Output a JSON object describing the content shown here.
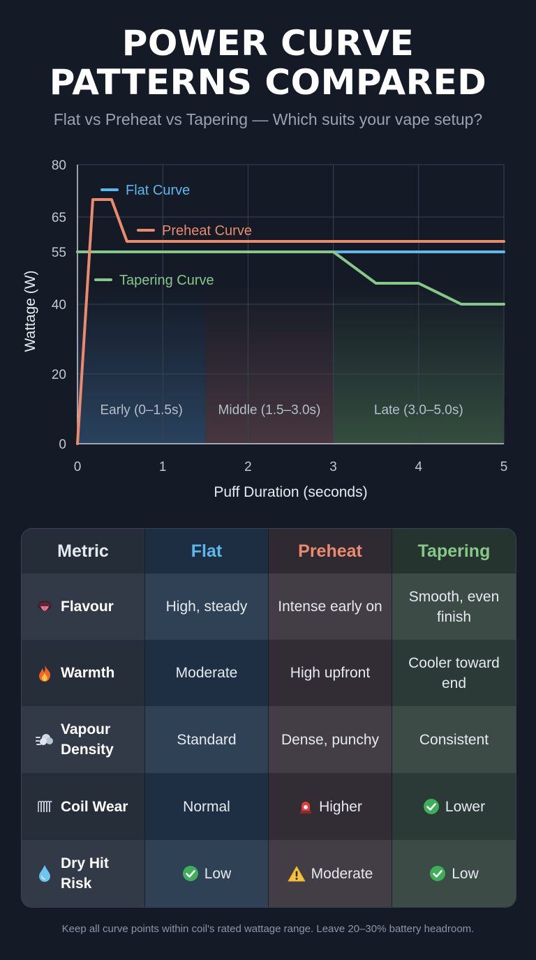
{
  "title_line1": "POWER CURVE",
  "title_line2": "PATTERNS COMPARED",
  "subtitle": "Flat vs Preheat vs Tapering — Which suits your vape setup?",
  "chart_data": {
    "type": "line",
    "title": "",
    "xlabel": "Puff Duration (seconds)",
    "ylabel": "Wattage (W)",
    "xlim": [
      0,
      5
    ],
    "ylim": [
      0,
      80
    ],
    "x_ticks": [
      0,
      1,
      2,
      3,
      4,
      5
    ],
    "y_ticks": [
      0,
      20,
      40,
      55,
      65,
      80
    ],
    "grid": true,
    "regions": [
      {
        "label": "Early (0–1.5s)",
        "x": [
          0,
          1.5
        ],
        "color": "#2a4460"
      },
      {
        "label": "Middle (1.5–3.0s)",
        "x": [
          1.5,
          3.0
        ],
        "color": "#4a3840"
      },
      {
        "label": "Late (3.0–5.0s)",
        "x": [
          3.0,
          5.0
        ],
        "color": "#35503f"
      }
    ],
    "series": [
      {
        "name": "Flat Curve",
        "color": "#5bb8ec",
        "points": [
          [
            0,
            55
          ],
          [
            5,
            55
          ]
        ]
      },
      {
        "name": "Preheat Curve",
        "color": "#ec8a6e",
        "points": [
          [
            0,
            0
          ],
          [
            0.18,
            70
          ],
          [
            0.4,
            70
          ],
          [
            0.58,
            58
          ],
          [
            5,
            58
          ]
        ]
      },
      {
        "name": "Tapering Curve",
        "color": "#86c78a",
        "points": [
          [
            0,
            55
          ],
          [
            3.0,
            55
          ],
          [
            3.5,
            46
          ],
          [
            4.0,
            46
          ],
          [
            4.5,
            40
          ],
          [
            5,
            40
          ]
        ]
      }
    ],
    "legend": "inside-top-left"
  },
  "table": {
    "headers": [
      "Metric",
      "Flat",
      "Preheat",
      "Tapering"
    ],
    "header_colors": [
      "#ffffff",
      "#5bb8ec",
      "#ec8a6e",
      "#86c78a"
    ],
    "rows": [
      {
        "metric": "Flavour",
        "icon": "tongue-icon",
        "flat": "High, steady",
        "preheat": "Intense early on",
        "tapering": "Smooth, even finish"
      },
      {
        "metric": "Warmth",
        "icon": "fire-icon",
        "flat": "Moderate",
        "preheat": "High upfront",
        "tapering": "Cooler toward end"
      },
      {
        "metric": "Vapour Density",
        "icon": "vapour-cloud-icon",
        "flat": "Standard",
        "preheat": "Dense, punchy",
        "tapering": "Consistent"
      },
      {
        "metric": "Coil Wear",
        "icon": "coil-icon",
        "flat": "Normal",
        "preheat": "Higher",
        "tapering": "Lower",
        "preheat_icon": "alarm-icon",
        "tapering_icon": "check-icon"
      },
      {
        "metric": "Dry Hit Risk",
        "icon": "droplet-icon",
        "flat": "Low",
        "preheat": "Moderate",
        "tapering": "Low",
        "flat_icon": "check-icon",
        "preheat_icon": "warning-icon",
        "tapering_icon": "check-icon"
      }
    ]
  },
  "footer": "Keep all curve points within coil's rated wattage range. Leave 20–30% battery headroom."
}
